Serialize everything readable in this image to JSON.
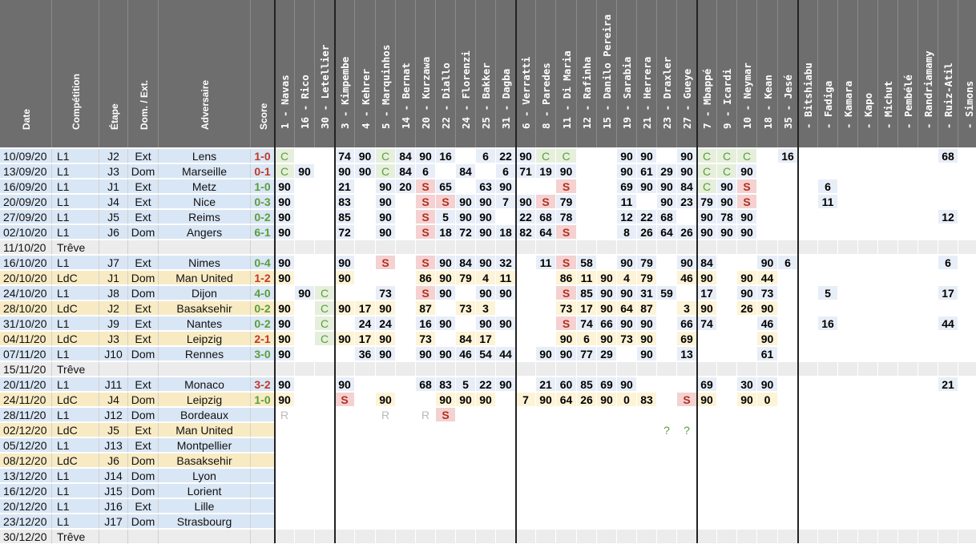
{
  "colors": {
    "header": "#6e6e6e",
    "l1_row": "#d9e6f5",
    "ldc_row": "#f8ebc3",
    "break_row": "#ececec",
    "win": "#5a9e3a",
    "loss": "#c0392b",
    "c_cell": "#e6efdc",
    "s_cell": "#f5d1d1"
  },
  "headers": {
    "info": [
      "Date",
      "Compétition",
      "Étape",
      "Dom. / Ext.",
      "Adversaire",
      "Score"
    ],
    "players": [
      "1 - Navas",
      "16 - Rico",
      "30 - Letellier",
      "3 - Kimpembe",
      "4 - Kehrer",
      "5 - Marquinhos",
      "14 - Bernat",
      "20 - Kurzawa",
      "22 - Diallo",
      "24 - Florenzi",
      "25 - Bakker",
      "31 - Dagba",
      "6 - Verratti",
      "8 - Paredes",
      "11 - Di Maria",
      "12 - Rafinha",
      "15 - Danilo Pereira",
      "19 - Sarabia",
      "21 - Herrera",
      "23 - Draxler",
      "27 - Gueye",
      "7 - Mbappé",
      "9 - Icardi",
      "10 - Neymar",
      "18 - Kean",
      "35 - Jesé",
      "- Bitshiabu",
      "- Fadiga",
      "- Kamara",
      "- Kapo",
      "- Michut",
      "- Pembélé",
      "- Randriamamy",
      "- Ruiz-Atil",
      "- Simons"
    ]
  },
  "rows": [
    {
      "date": "10/09/20",
      "comp": "L1",
      "stage": "J2",
      "venue": "Ext",
      "opp": "Lens",
      "score": "1-0",
      "res": "L",
      "cells": [
        "C",
        "",
        "",
        "74",
        "90",
        "C",
        "84",
        "90",
        "16",
        "",
        "6",
        "22",
        "90",
        "C",
        "C",
        "",
        "",
        "90",
        "90",
        "",
        "90",
        "C",
        "C",
        "C",
        "",
        "16",
        "",
        "",
        "",
        "",
        "",
        "",
        "",
        "68",
        ""
      ]
    },
    {
      "date": "13/09/20",
      "comp": "L1",
      "stage": "J3",
      "venue": "Dom",
      "opp": "Marseille",
      "score": "0-1",
      "res": "L",
      "cells": [
        "C",
        "90",
        "",
        "90",
        "90",
        "C",
        "84",
        "6",
        "",
        "84",
        "",
        "6",
        "71",
        "19",
        "90",
        "",
        "",
        "90",
        "61",
        "29",
        "90",
        "C",
        "C",
        "90",
        "",
        "",
        "",
        "",
        "",
        "",
        "",
        "",
        "",
        "",
        ""
      ]
    },
    {
      "date": "16/09/20",
      "comp": "L1",
      "stage": "J1",
      "venue": "Ext",
      "opp": "Metz",
      "score": "1-0",
      "res": "W",
      "cells": [
        "90",
        "",
        "",
        "21",
        "",
        "90",
        "20",
        "S",
        "65",
        "",
        "63",
        "90",
        "",
        "",
        "S",
        "",
        "",
        "69",
        "90",
        "90",
        "84",
        "C",
        "90",
        "S",
        "",
        "",
        "",
        "6",
        "",
        "",
        "",
        "",
        "",
        "",
        ""
      ]
    },
    {
      "date": "20/09/20",
      "comp": "L1",
      "stage": "J4",
      "venue": "Ext",
      "opp": "Nice",
      "score": "0-3",
      "res": "W",
      "cells": [
        "90",
        "",
        "",
        "83",
        "",
        "90",
        "",
        "S",
        "S",
        "90",
        "90",
        "7",
        "90",
        "S",
        "79",
        "",
        "",
        "11",
        "",
        "90",
        "23",
        "79",
        "90",
        "S",
        "",
        "",
        "",
        "11",
        "",
        "",
        "",
        "",
        "",
        "",
        ""
      ]
    },
    {
      "date": "27/09/20",
      "comp": "L1",
      "stage": "J5",
      "venue": "Ext",
      "opp": "Reims",
      "score": "0-2",
      "res": "W",
      "cells": [
        "90",
        "",
        "",
        "85",
        "",
        "90",
        "",
        "S",
        "5",
        "90",
        "90",
        "",
        "22",
        "68",
        "78",
        "",
        "",
        "12",
        "22",
        "68",
        "",
        "90",
        "78",
        "90",
        "",
        "",
        "",
        "",
        "",
        "",
        "",
        "",
        "",
        "12",
        ""
      ]
    },
    {
      "date": "02/10/20",
      "comp": "L1",
      "stage": "J6",
      "venue": "Dom",
      "opp": "Angers",
      "score": "6-1",
      "res": "W",
      "cells": [
        "90",
        "",
        "",
        "72",
        "",
        "90",
        "",
        "S",
        "18",
        "72",
        "90",
        "18",
        "82",
        "64",
        "S",
        "",
        "",
        "8",
        "26",
        "64",
        "26",
        "90",
        "90",
        "90",
        "",
        "",
        "",
        "",
        "",
        "",
        "",
        "",
        "",
        "",
        ""
      ]
    },
    {
      "date": "11/10/20",
      "comp": "Trêve",
      "stage": "",
      "venue": "",
      "opp": "",
      "score": "",
      "res": "B",
      "cells": []
    },
    {
      "date": "16/10/20",
      "comp": "L1",
      "stage": "J7",
      "venue": "Ext",
      "opp": "Nimes",
      "score": "0-4",
      "res": "W",
      "cells": [
        "90",
        "",
        "",
        "90",
        "",
        "S",
        "",
        "S",
        "90",
        "84",
        "90",
        "32",
        "",
        "11",
        "S",
        "58",
        "",
        "90",
        "79",
        "",
        "90",
        "84",
        "",
        "",
        "90",
        "6",
        "",
        "",
        "",
        "",
        "",
        "",
        "",
        "6",
        ""
      ]
    },
    {
      "date": "20/10/20",
      "comp": "LdC",
      "stage": "J1",
      "venue": "Dom",
      "opp": "Man United",
      "score": "1-2",
      "res": "L",
      "cells": [
        "90",
        "",
        "",
        "90",
        "",
        "",
        "",
        "86",
        "90",
        "79",
        "4",
        "11",
        "",
        "",
        "86",
        "11",
        "90",
        "4",
        "79",
        "",
        "46",
        "90",
        "",
        "90",
        "44",
        "",
        "",
        "",
        "",
        "",
        "",
        "",
        "",
        "",
        ""
      ]
    },
    {
      "date": "24/10/20",
      "comp": "L1",
      "stage": "J8",
      "venue": "Dom",
      "opp": "Dijon",
      "score": "4-0",
      "res": "W",
      "cells": [
        "",
        "90",
        "C",
        "",
        "",
        "73",
        "",
        "S",
        "90",
        "",
        "90",
        "90",
        "",
        "",
        "S",
        "85",
        "90",
        "90",
        "31",
        "59",
        "",
        "17",
        "",
        "90",
        "73",
        "",
        "",
        "5",
        "",
        "",
        "",
        "",
        "",
        "17",
        ""
      ]
    },
    {
      "date": "28/10/20",
      "comp": "LdC",
      "stage": "J2",
      "venue": "Ext",
      "opp": "Basaksehir",
      "score": "0-2",
      "res": "W",
      "cells": [
        "90",
        "",
        "C",
        "90",
        "17",
        "90",
        "",
        "87",
        "",
        "73",
        "3",
        "",
        "",
        "",
        "73",
        "17",
        "90",
        "64",
        "87",
        "",
        "3",
        "90",
        "",
        "26",
        "90",
        "",
        "",
        "",
        "",
        "",
        "",
        "",
        "",
        "",
        ""
      ]
    },
    {
      "date": "31/10/20",
      "comp": "L1",
      "stage": "J9",
      "venue": "Ext",
      "opp": "Nantes",
      "score": "0-2",
      "res": "W",
      "cells": [
        "90",
        "",
        "C",
        "",
        "24",
        "24",
        "",
        "16",
        "90",
        "",
        "90",
        "90",
        "",
        "",
        "S",
        "74",
        "66",
        "90",
        "90",
        "",
        "66",
        "74",
        "",
        "",
        "46",
        "",
        "",
        "16",
        "",
        "",
        "",
        "",
        "",
        "44",
        ""
      ]
    },
    {
      "date": "04/11/20",
      "comp": "LdC",
      "stage": "J3",
      "venue": "Ext",
      "opp": "Leipzig",
      "score": "2-1",
      "res": "L",
      "cells": [
        "90",
        "",
        "C",
        "90",
        "17",
        "90",
        "",
        "73",
        "",
        "84",
        "17",
        "",
        "",
        "",
        "90",
        "6",
        "90",
        "73",
        "90",
        "",
        "69",
        "",
        "",
        "",
        "90",
        "",
        "",
        "",
        "",
        "",
        "",
        "",
        "",
        "",
        ""
      ]
    },
    {
      "date": "07/11/20",
      "comp": "L1",
      "stage": "J10",
      "venue": "Dom",
      "opp": "Rennes",
      "score": "3-0",
      "res": "W",
      "cells": [
        "90",
        "",
        "",
        "",
        "36",
        "90",
        "",
        "90",
        "90",
        "46",
        "54",
        "44",
        "",
        "90",
        "90",
        "77",
        "29",
        "",
        "90",
        "",
        "13",
        "",
        "",
        "",
        "61",
        "",
        "",
        "",
        "",
        "",
        "",
        "",
        "",
        "",
        ""
      ]
    },
    {
      "date": "15/11/20",
      "comp": "Trêve",
      "stage": "",
      "venue": "",
      "opp": "",
      "score": "",
      "res": "B",
      "cells": []
    },
    {
      "date": "20/11/20",
      "comp": "L1",
      "stage": "J11",
      "venue": "Ext",
      "opp": "Monaco",
      "score": "3-2",
      "res": "L",
      "cells": [
        "90",
        "",
        "",
        "90",
        "",
        "",
        "",
        "68",
        "83",
        "5",
        "22",
        "90",
        "",
        "21",
        "60",
        "85",
        "69",
        "90",
        "",
        "",
        "",
        "69",
        "",
        "30",
        "90",
        "",
        "",
        "",
        "",
        "",
        "",
        "",
        "",
        "21",
        ""
      ]
    },
    {
      "date": "24/11/20",
      "comp": "LdC",
      "stage": "J4",
      "venue": "Dom",
      "opp": "Leipzig",
      "score": "1-0",
      "res": "W",
      "cells": [
        "90",
        "",
        "",
        "S",
        "",
        "90",
        "",
        "",
        "90",
        "90",
        "90",
        "",
        "7",
        "90",
        "64",
        "26",
        "90",
        "0",
        "83",
        "",
        "S",
        "90",
        "",
        "90",
        "0",
        "",
        "",
        "",
        "",
        "",
        "",
        "",
        "",
        "",
        ""
      ]
    },
    {
      "date": "28/11/20",
      "comp": "L1",
      "stage": "J12",
      "venue": "Dom",
      "opp": "Bordeaux",
      "score": "",
      "res": "",
      "cells": [
        "R",
        "",
        "",
        "",
        "",
        "R",
        "",
        "R",
        "S",
        "",
        "",
        "",
        "",
        "",
        "",
        "",
        "",
        "",
        "",
        "",
        "",
        "",
        "",
        "",
        "",
        "",
        "",
        "",
        "",
        "",
        "",
        "",
        "",
        "",
        ""
      ]
    },
    {
      "date": "02/12/20",
      "comp": "LdC",
      "stage": "J5",
      "venue": "Ext",
      "opp": "Man United",
      "score": "",
      "res": "",
      "cells": [
        "",
        "",
        "",
        "",
        "",
        "",
        "",
        "",
        "",
        "",
        "",
        "",
        "",
        "",
        "",
        "",
        "",
        "",
        "",
        "?",
        "?",
        "",
        "",
        "",
        "",
        "",
        "",
        "",
        "",
        "",
        "",
        "",
        "",
        "",
        ""
      ]
    },
    {
      "date": "05/12/20",
      "comp": "L1",
      "stage": "J13",
      "venue": "Ext",
      "opp": "Montpellier",
      "score": "",
      "res": "",
      "cells": []
    },
    {
      "date": "08/12/20",
      "comp": "LdC",
      "stage": "J6",
      "venue": "Dom",
      "opp": "Basaksehir",
      "score": "",
      "res": "",
      "cells": []
    },
    {
      "date": "13/12/20",
      "comp": "L1",
      "stage": "J14",
      "venue": "Dom",
      "opp": "Lyon",
      "score": "",
      "res": "",
      "cells": []
    },
    {
      "date": "16/12/20",
      "comp": "L1",
      "stage": "J15",
      "venue": "Dom",
      "opp": "Lorient",
      "score": "",
      "res": "",
      "cells": []
    },
    {
      "date": "20/12/20",
      "comp": "L1",
      "stage": "J16",
      "venue": "Ext",
      "opp": "Lille",
      "score": "",
      "res": "",
      "cells": []
    },
    {
      "date": "23/12/20",
      "comp": "L1",
      "stage": "J17",
      "venue": "Dom",
      "opp": "Strasbourg",
      "score": "",
      "res": "",
      "cells": []
    },
    {
      "date": "30/12/20",
      "comp": "Trêve",
      "stage": "",
      "venue": "",
      "opp": "",
      "score": "",
      "res": "B",
      "cells": []
    }
  ]
}
